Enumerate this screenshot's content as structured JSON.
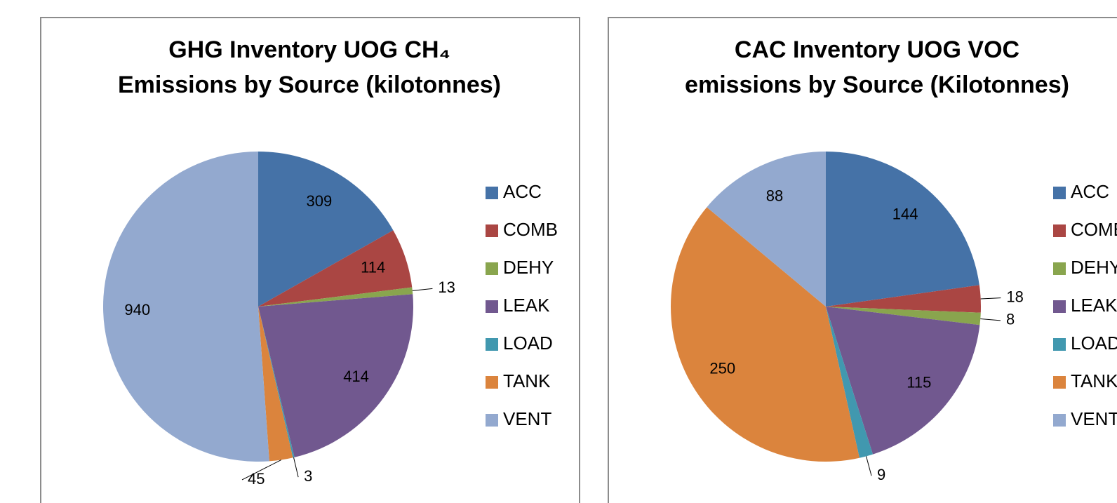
{
  "chart_data": [
    {
      "type": "pie",
      "title": [
        "GHG Inventory UOG CH₄",
        "Emissions by Source (kilotonnes)"
      ],
      "categories": [
        "ACC",
        "COMB",
        "DEHY",
        "LEAK",
        "LOAD",
        "TANK",
        "VENT"
      ],
      "values": [
        309,
        114,
        13,
        414,
        3,
        45,
        940
      ],
      "colors": [
        "#4572A7",
        "#AA4643",
        "#89A54E",
        "#71588F",
        "#4198AF",
        "#DB843D",
        "#93A9CF"
      ],
      "legend": "right"
    },
    {
      "type": "pie",
      "title": [
        "CAC Inventory UOG VOC",
        "emissions by Source (Kilotonnes)"
      ],
      "categories": [
        "ACC",
        "COMB",
        "DEHY",
        "LEAK",
        "LOAD",
        "TANK",
        "VENT"
      ],
      "values": [
        144,
        18,
        8,
        115,
        9,
        250,
        88
      ],
      "colors": [
        "#4572A7",
        "#AA4643",
        "#89A54E",
        "#71588F",
        "#4198AF",
        "#DB843D",
        "#93A9CF"
      ],
      "legend": "right"
    }
  ]
}
